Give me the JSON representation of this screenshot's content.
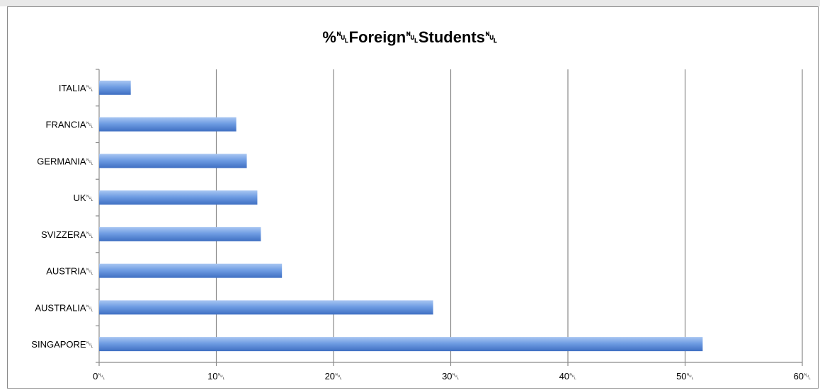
{
  "chart_data": {
    "type": "bar",
    "orientation": "horizontal",
    "title": "%␀Foreign␀Students␀",
    "categories": [
      "ITALIA",
      "FRANCIA",
      "GERMANIA",
      "UK",
      "SVIZZERA",
      "AUSTRIA",
      "AUSTRALIA",
      "SINGAPORE"
    ],
    "category_labels": [
      "ITALIA␀",
      "FRANCIA␀",
      "GERMANIA␀",
      "UK␀",
      "SVIZZERA␀",
      "AUSTRIA␀",
      "AUSTRALIA␀",
      "SINGAPORE␀"
    ],
    "values": [
      2.7,
      11.7,
      12.6,
      13.5,
      13.8,
      15.6,
      28.5,
      51.5
    ],
    "xlim": [
      0,
      60
    ],
    "x_ticks": [
      0,
      10,
      20,
      30,
      40,
      50,
      60
    ],
    "x_tick_labels": [
      "0␀",
      "10␀",
      "20␀",
      "30␀",
      "40␀",
      "50␀",
      "60␀"
    ],
    "xlabel": "",
    "ylabel": "",
    "grid": "vertical major gridlines",
    "legend": "none",
    "bar_color": "#6f9de3",
    "bar_highlight_color": "#a8c6f2",
    "bar_shadow_color": "#3f6fc2"
  }
}
